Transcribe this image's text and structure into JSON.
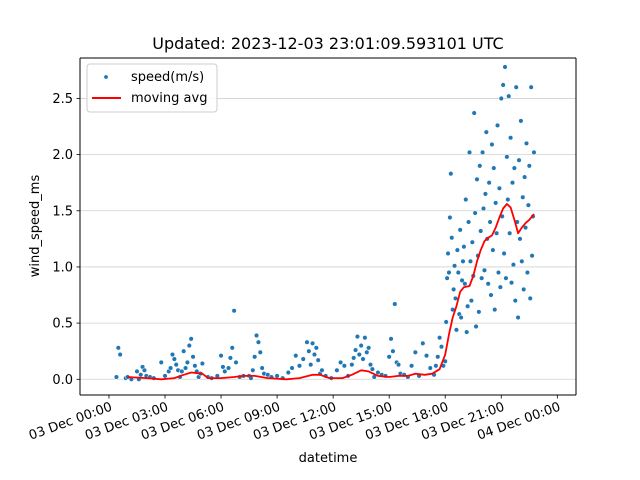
{
  "chart_data": {
    "type": "scatter",
    "title": "Updated: 2023-12-03 23:01:09.593101 UTC",
    "xlabel": "datetime",
    "ylabel": "wind_speed_ms",
    "xlim_hours": [
      -1.55,
      25.0
    ],
    "ylim": [
      -0.14,
      2.86
    ],
    "grid": "y",
    "legend_position": "top-left",
    "x_ticks": [
      {
        "hour": 0,
        "label": "03 Dec 00:00"
      },
      {
        "hour": 3,
        "label": "03 Dec 03:00"
      },
      {
        "hour": 6,
        "label": "03 Dec 06:00"
      },
      {
        "hour": 9,
        "label": "03 Dec 09:00"
      },
      {
        "hour": 12,
        "label": "03 Dec 12:00"
      },
      {
        "hour": 15,
        "label": "03 Dec 15:00"
      },
      {
        "hour": 18,
        "label": "03 Dec 18:00"
      },
      {
        "hour": 21,
        "label": "03 Dec 21:00"
      },
      {
        "hour": 24,
        "label": "04 Dec 00:00"
      }
    ],
    "y_ticks": [
      0.0,
      0.5,
      1.0,
      1.5,
      2.0,
      2.5
    ],
    "y_tick_labels": [
      "0.0",
      "0.5",
      "1.0",
      "1.5",
      "2.0",
      "2.5"
    ],
    "series": [
      {
        "name": "speed(m/s)",
        "kind": "scatter",
        "color": "#1f77b4",
        "points": [
          [
            0.4,
            0.02
          ],
          [
            0.5,
            0.28
          ],
          [
            0.6,
            0.22
          ],
          [
            0.9,
            0.01
          ],
          [
            1.0,
            0.02
          ],
          [
            1.2,
            0.0
          ],
          [
            1.5,
            0.07
          ],
          [
            1.6,
            0.0
          ],
          [
            1.7,
            0.04
          ],
          [
            1.8,
            0.11
          ],
          [
            1.9,
            0.08
          ],
          [
            2.0,
            0.03
          ],
          [
            2.2,
            0.02
          ],
          [
            2.4,
            0.01
          ],
          [
            2.8,
            0.15
          ],
          [
            3.0,
            0.03
          ],
          [
            3.2,
            0.07
          ],
          [
            3.3,
            0.1
          ],
          [
            3.4,
            0.22
          ],
          [
            3.5,
            0.18
          ],
          [
            3.6,
            0.13
          ],
          [
            3.7,
            0.08
          ],
          [
            3.8,
            0.02
          ],
          [
            3.9,
            0.07
          ],
          [
            4.0,
            0.25
          ],
          [
            4.1,
            0.1
          ],
          [
            4.2,
            0.15
          ],
          [
            4.3,
            0.3
          ],
          [
            4.4,
            0.36
          ],
          [
            4.5,
            0.2
          ],
          [
            4.6,
            0.12
          ],
          [
            4.7,
            0.07
          ],
          [
            4.8,
            0.02
          ],
          [
            4.9,
            0.05
          ],
          [
            5.0,
            0.14
          ],
          [
            5.3,
            0.02
          ],
          [
            5.5,
            0.01
          ],
          [
            5.8,
            0.03
          ],
          [
            6.0,
            0.21
          ],
          [
            6.1,
            0.11
          ],
          [
            6.2,
            0.07
          ],
          [
            6.4,
            0.1
          ],
          [
            6.5,
            0.19
          ],
          [
            6.6,
            0.28
          ],
          [
            6.7,
            0.61
          ],
          [
            6.8,
            0.15
          ],
          [
            7.0,
            0.02
          ],
          [
            7.2,
            0.03
          ],
          [
            7.5,
            0.03
          ],
          [
            7.6,
            0.01
          ],
          [
            7.7,
            0.08
          ],
          [
            7.8,
            0.2
          ],
          [
            7.9,
            0.39
          ],
          [
            8.0,
            0.33
          ],
          [
            8.1,
            0.24
          ],
          [
            8.2,
            0.1
          ],
          [
            8.3,
            0.05
          ],
          [
            8.5,
            0.04
          ],
          [
            8.7,
            0.02
          ],
          [
            9.0,
            0.03
          ],
          [
            9.3,
            0.01
          ],
          [
            9.6,
            0.06
          ],
          [
            9.8,
            0.1
          ],
          [
            10.0,
            0.21
          ],
          [
            10.2,
            0.12
          ],
          [
            10.4,
            0.18
          ],
          [
            10.6,
            0.33
          ],
          [
            10.7,
            0.25
          ],
          [
            10.8,
            0.13
          ],
          [
            10.9,
            0.32
          ],
          [
            11.0,
            0.22
          ],
          [
            11.1,
            0.28
          ],
          [
            11.2,
            0.17
          ],
          [
            11.3,
            0.05
          ],
          [
            11.4,
            0.08
          ],
          [
            11.6,
            0.03
          ],
          [
            11.9,
            0.01
          ],
          [
            12.2,
            0.08
          ],
          [
            12.4,
            0.15
          ],
          [
            12.6,
            0.12
          ],
          [
            12.8,
            0.03
          ],
          [
            13.0,
            0.13
          ],
          [
            13.1,
            0.19
          ],
          [
            13.2,
            0.26
          ],
          [
            13.3,
            0.38
          ],
          [
            13.4,
            0.22
          ],
          [
            13.5,
            0.3
          ],
          [
            13.6,
            0.18
          ],
          [
            13.7,
            0.37
          ],
          [
            13.8,
            0.24
          ],
          [
            13.9,
            0.28
          ],
          [
            14.0,
            0.13
          ],
          [
            14.1,
            0.09
          ],
          [
            14.2,
            0.02
          ],
          [
            14.4,
            0.06
          ],
          [
            14.6,
            0.04
          ],
          [
            14.8,
            0.03
          ],
          [
            15.0,
            0.2
          ],
          [
            15.1,
            0.36
          ],
          [
            15.2,
            0.25
          ],
          [
            15.3,
            0.67
          ],
          [
            15.4,
            0.15
          ],
          [
            15.5,
            0.13
          ],
          [
            15.6,
            0.05
          ],
          [
            15.8,
            0.04
          ],
          [
            16.0,
            0.02
          ],
          [
            16.2,
            0.12
          ],
          [
            16.4,
            0.24
          ],
          [
            16.6,
            0.03
          ],
          [
            16.8,
            0.32
          ],
          [
            17.0,
            0.21
          ],
          [
            17.2,
            0.1
          ],
          [
            17.4,
            0.04
          ],
          [
            17.5,
            0.12
          ],
          [
            17.6,
            0.2
          ],
          [
            17.7,
            0.37
          ],
          [
            17.8,
            0.29
          ],
          [
            17.9,
            0.12
          ],
          [
            18.0,
            0.16
          ],
          [
            18.05,
            0.51
          ],
          [
            18.1,
            0.9
          ],
          [
            18.15,
            1.12
          ],
          [
            18.2,
            0.95
          ],
          [
            18.25,
            1.44
          ],
          [
            18.3,
            1.83
          ],
          [
            18.35,
            1.26
          ],
          [
            18.4,
            0.62
          ],
          [
            18.45,
            0.8
          ],
          [
            18.5,
            1.01
          ],
          [
            18.55,
            0.72
          ],
          [
            18.6,
            0.44
          ],
          [
            18.65,
            1.15
          ],
          [
            18.7,
            0.95
          ],
          [
            18.75,
            0.58
          ],
          [
            18.8,
            1.33
          ],
          [
            18.85,
            0.55
          ],
          [
            18.9,
            0.88
          ],
          [
            18.95,
            1.05
          ],
          [
            19.0,
            1.18
          ],
          [
            19.05,
            0.85
          ],
          [
            19.1,
            1.6
          ],
          [
            19.15,
            0.42
          ],
          [
            19.2,
            0.65
          ],
          [
            19.25,
            1.4
          ],
          [
            19.3,
            2.02
          ],
          [
            19.35,
            1.05
          ],
          [
            19.4,
            0.7
          ],
          [
            19.45,
            1.22
          ],
          [
            19.5,
            0.92
          ],
          [
            19.55,
            2.37
          ],
          [
            19.6,
            1.48
          ],
          [
            19.65,
            0.47
          ],
          [
            19.7,
            1.78
          ],
          [
            19.75,
            1.1
          ],
          [
            19.8,
            0.6
          ],
          [
            19.85,
            1.9
          ],
          [
            19.9,
            1.32
          ],
          [
            19.95,
            0.9
          ],
          [
            20.0,
            2.02
          ],
          [
            20.05,
            1.52
          ],
          [
            20.1,
            0.97
          ],
          [
            20.15,
            1.65
          ],
          [
            20.2,
            2.2
          ],
          [
            20.25,
            1.25
          ],
          [
            20.3,
            0.85
          ],
          [
            20.35,
            1.75
          ],
          [
            20.4,
            1.4
          ],
          [
            20.45,
            0.75
          ],
          [
            20.5,
            2.09
          ],
          [
            20.55,
            1.15
          ],
          [
            20.6,
            1.88
          ],
          [
            20.65,
            0.62
          ],
          [
            20.7,
            1.57
          ],
          [
            20.75,
            1.3
          ],
          [
            20.8,
            2.26
          ],
          [
            20.85,
            0.95
          ],
          [
            20.9,
            1.7
          ],
          [
            20.95,
            0.82
          ],
          [
            21.0,
            2.5
          ],
          [
            21.05,
            1.45
          ],
          [
            21.1,
            2.62
          ],
          [
            21.15,
            1.12
          ],
          [
            21.2,
            2.78
          ],
          [
            21.25,
            0.9
          ],
          [
            21.3,
            1.98
          ],
          [
            21.35,
            1.6
          ],
          [
            21.4,
            2.52
          ],
          [
            21.45,
            1.3
          ],
          [
            21.5,
            2.15
          ],
          [
            21.55,
            0.86
          ],
          [
            21.6,
            1.75
          ],
          [
            21.65,
            1.02
          ],
          [
            21.7,
            1.88
          ],
          [
            21.75,
            0.7
          ],
          [
            21.8,
            2.6
          ],
          [
            21.85,
            1.4
          ],
          [
            21.9,
            0.55
          ],
          [
            21.95,
            1.95
          ],
          [
            22.0,
            1.25
          ],
          [
            22.05,
            2.3
          ],
          [
            22.1,
            1.05
          ],
          [
            22.15,
            1.62
          ],
          [
            22.2,
            0.8
          ],
          [
            22.25,
            1.8
          ],
          [
            22.3,
            1.35
          ],
          [
            22.35,
            2.1
          ],
          [
            22.4,
            0.95
          ],
          [
            22.45,
            1.55
          ],
          [
            22.5,
            1.9
          ],
          [
            22.55,
            0.72
          ],
          [
            22.6,
            2.6
          ],
          [
            22.65,
            1.1
          ],
          [
            22.7,
            1.45
          ],
          [
            22.75,
            2.02
          ]
        ]
      },
      {
        "name": "moving avg",
        "kind": "line",
        "color": "#ff0000",
        "points": [
          [
            1.0,
            0.02
          ],
          [
            2.0,
            0.01
          ],
          [
            2.8,
            0.0
          ],
          [
            3.5,
            0.01
          ],
          [
            4.0,
            0.04
          ],
          [
            4.4,
            0.06
          ],
          [
            5.0,
            0.05
          ],
          [
            5.3,
            0.01
          ],
          [
            6.0,
            0.01
          ],
          [
            6.7,
            0.02
          ],
          [
            7.2,
            0.03
          ],
          [
            7.8,
            0.03
          ],
          [
            8.5,
            0.01
          ],
          [
            9.5,
            0.0
          ],
          [
            10.2,
            0.01
          ],
          [
            10.9,
            0.04
          ],
          [
            11.3,
            0.04
          ],
          [
            11.8,
            0.01
          ],
          [
            12.5,
            0.01
          ],
          [
            13.0,
            0.04
          ],
          [
            13.5,
            0.08
          ],
          [
            13.9,
            0.07
          ],
          [
            14.4,
            0.03
          ],
          [
            15.0,
            0.02
          ],
          [
            15.5,
            0.03
          ],
          [
            16.0,
            0.03
          ],
          [
            16.4,
            0.05
          ],
          [
            16.9,
            0.04
          ],
          [
            17.3,
            0.05
          ],
          [
            17.7,
            0.09
          ],
          [
            18.0,
            0.22
          ],
          [
            18.2,
            0.4
          ],
          [
            18.4,
            0.55
          ],
          [
            18.6,
            0.65
          ],
          [
            18.8,
            0.78
          ],
          [
            19.0,
            0.82
          ],
          [
            19.3,
            0.83
          ],
          [
            19.5,
            0.92
          ],
          [
            19.7,
            1.05
          ],
          [
            19.9,
            1.15
          ],
          [
            20.1,
            1.23
          ],
          [
            20.3,
            1.26
          ],
          [
            20.5,
            1.28
          ],
          [
            20.7,
            1.35
          ],
          [
            20.9,
            1.44
          ],
          [
            21.1,
            1.52
          ],
          [
            21.3,
            1.56
          ],
          [
            21.5,
            1.53
          ],
          [
            21.7,
            1.42
          ],
          [
            21.9,
            1.3
          ],
          [
            22.1,
            1.35
          ],
          [
            22.3,
            1.39
          ],
          [
            22.5,
            1.42
          ],
          [
            22.75,
            1.47
          ]
        ]
      }
    ]
  },
  "legend": {
    "items": [
      {
        "label": "speed(m/s)",
        "marker": "dot",
        "color": "#1f77b4"
      },
      {
        "label": "moving avg",
        "marker": "line",
        "color": "#ff0000"
      }
    ]
  }
}
